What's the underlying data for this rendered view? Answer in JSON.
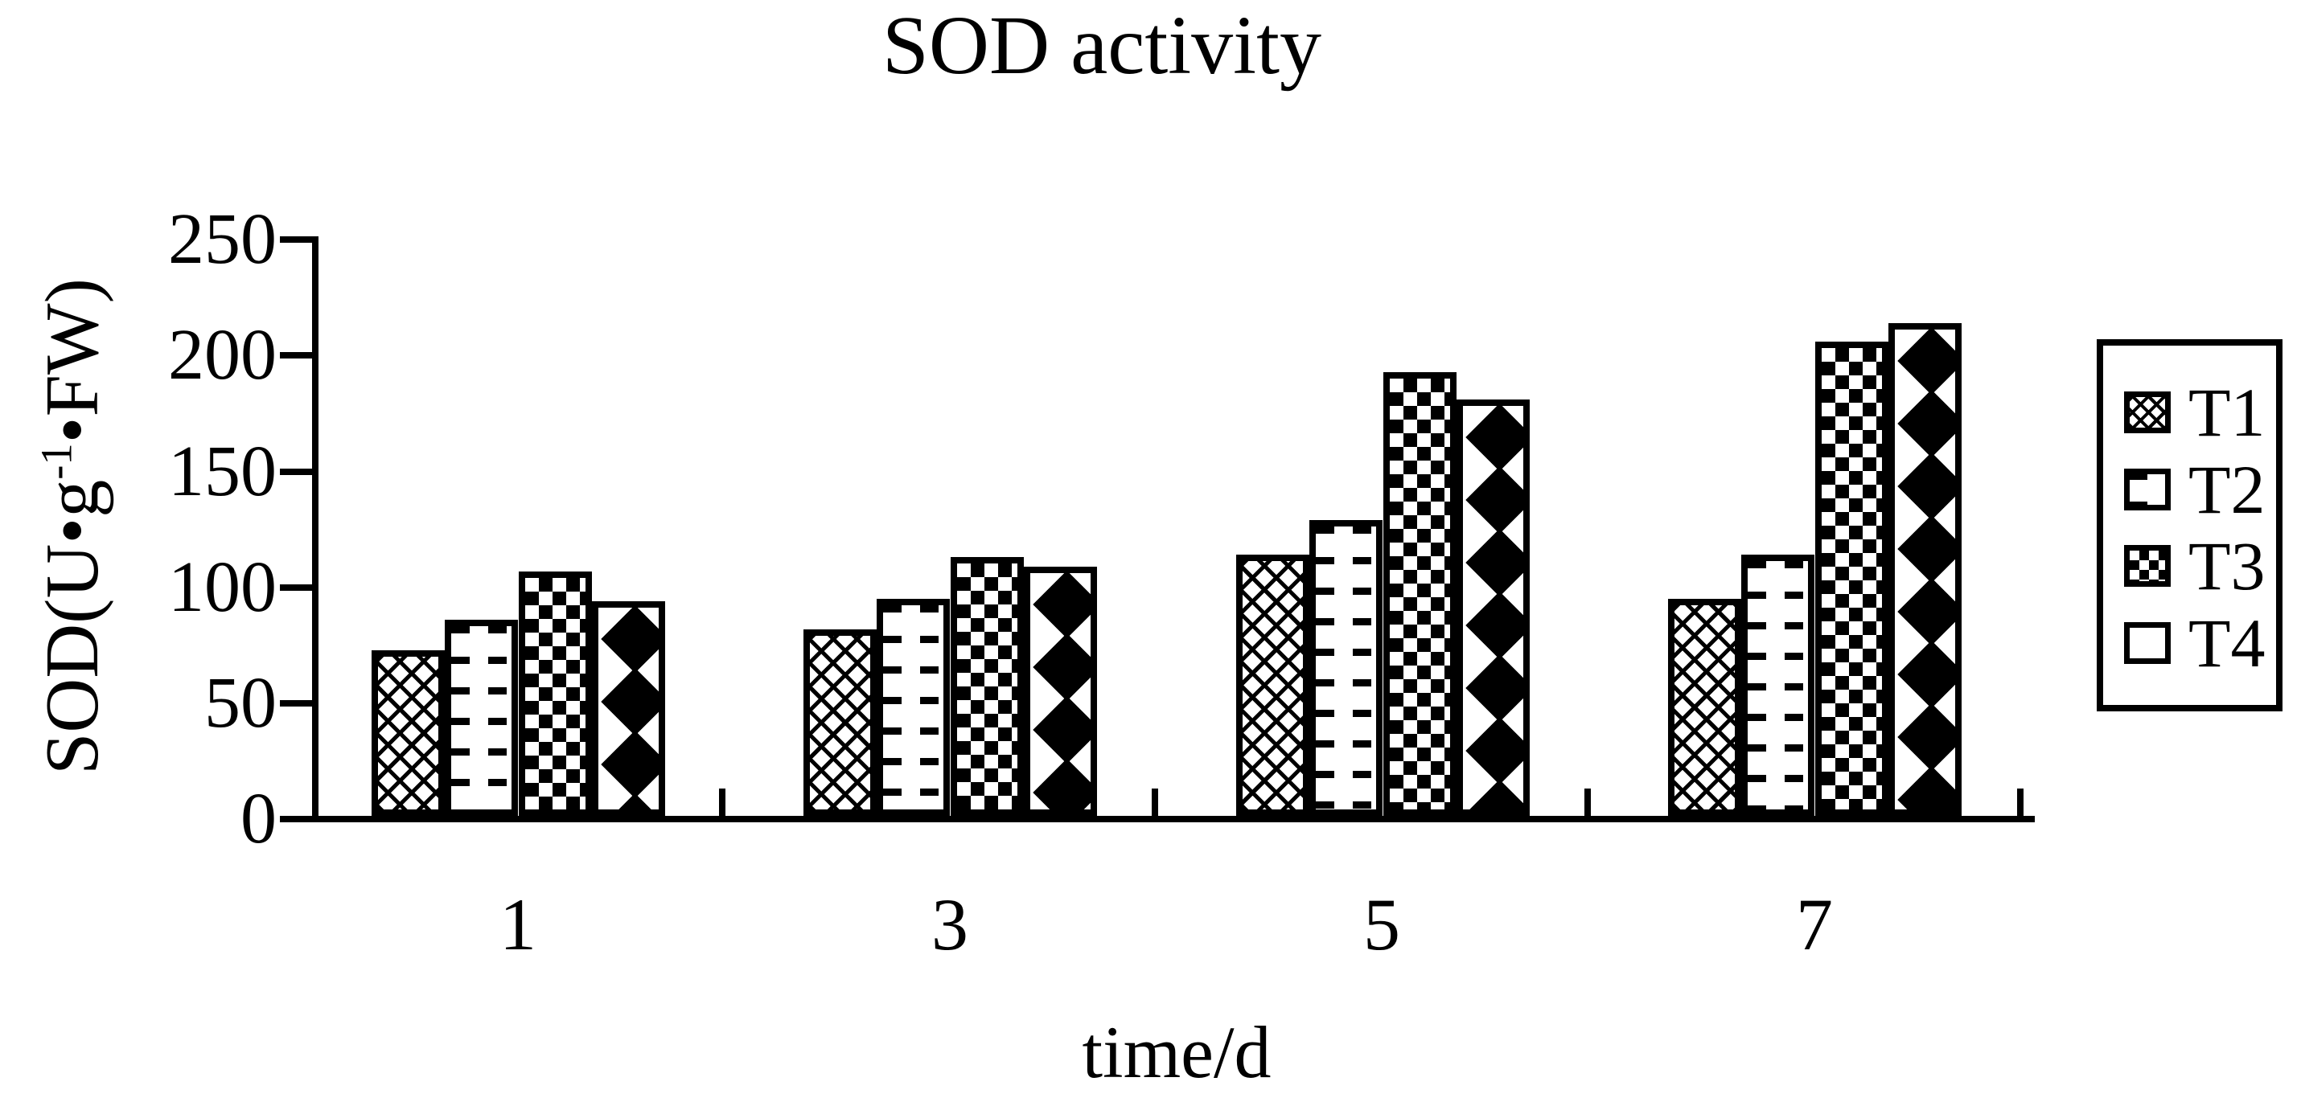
{
  "title": "SOD activity",
  "y_axis": {
    "label_prefix": "SOD(U•g",
    "label_superscript": "-1",
    "label_suffix": "•FW)",
    "tick_labels": [
      "250",
      "200",
      "150",
      "100",
      "50",
      "0"
    ]
  },
  "x_axis": {
    "label": "time/d",
    "tick_labels": [
      "1",
      "3",
      "5",
      "7"
    ]
  },
  "legend": {
    "items": [
      {
        "label": "T1",
        "pattern": "crosshatch"
      },
      {
        "label": "T2",
        "pattern": "wave"
      },
      {
        "label": "T3",
        "pattern": "checker"
      },
      {
        "label": "T4",
        "pattern": "diamond"
      }
    ]
  },
  "colors": {
    "foreground": "#000000",
    "background": "#ffffff"
  },
  "chart_data": {
    "type": "bar",
    "title": "SOD activity",
    "xlabel": "time/d",
    "ylabel": "SOD(U·g⁻¹·FW)",
    "categories": [
      "1",
      "3",
      "5",
      "7"
    ],
    "series": [
      {
        "name": "T1",
        "pattern": "crosshatch",
        "values": [
          73,
          82,
          114,
          95
        ]
      },
      {
        "name": "T2",
        "pattern": "wave",
        "values": [
          86,
          95,
          129,
          114
        ]
      },
      {
        "name": "T3",
        "pattern": "checker",
        "values": [
          107,
          113,
          193,
          206
        ]
      },
      {
        "name": "T4",
        "pattern": "diamond",
        "values": [
          94,
          109,
          181,
          214
        ]
      }
    ],
    "ylim": [
      0,
      250
    ],
    "ytick_interval": 50,
    "grid": false,
    "legend_position": "right"
  }
}
